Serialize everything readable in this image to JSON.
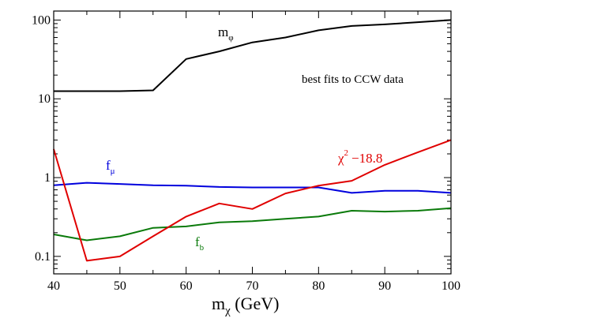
{
  "chart_data": {
    "type": "line",
    "x_scale": "linear",
    "y_scale": "log",
    "xlim": [
      40,
      100
    ],
    "ylim": [
      0.06,
      130
    ],
    "xticks": [
      40,
      50,
      60,
      70,
      80,
      90,
      100
    ],
    "xtick_labels": [
      "40",
      "50",
      "60",
      "70",
      "80",
      "90",
      "100"
    ],
    "yticks": [
      0.1,
      1,
      10,
      100
    ],
    "ytick_labels": [
      "0.1",
      "1",
      "10",
      "100"
    ],
    "xlabel": {
      "main": "m",
      "sub": "χ",
      "rest": " (GeV)"
    },
    "ylabel": "",
    "annotation": "best fits to CCW data",
    "series": [
      {
        "key": "m_phi",
        "name": "m",
        "sub": "φ",
        "color": "#000000",
        "x": [
          40,
          45,
          50,
          55,
          60,
          65,
          70,
          75,
          80,
          85,
          90,
          95,
          100
        ],
        "y": [
          12.5,
          12.5,
          12.5,
          12.8,
          32,
          40,
          52,
          60,
          74,
          84,
          88,
          94,
          100
        ]
      },
      {
        "key": "f_mu",
        "name": "f",
        "sub": "μ",
        "color": "#0000dd",
        "x": [
          40,
          45,
          50,
          55,
          60,
          65,
          70,
          75,
          80,
          85,
          90,
          95,
          100
        ],
        "y": [
          0.8,
          0.86,
          0.83,
          0.8,
          0.79,
          0.76,
          0.75,
          0.75,
          0.75,
          0.64,
          0.68,
          0.68,
          0.64
        ]
      },
      {
        "key": "f_b",
        "name": "f",
        "sub": "b",
        "color": "#0a7a0a",
        "x": [
          40,
          45,
          50,
          55,
          60,
          65,
          70,
          75,
          80,
          85,
          90,
          95,
          100
        ],
        "y": [
          0.19,
          0.16,
          0.18,
          0.23,
          0.24,
          0.27,
          0.28,
          0.3,
          0.32,
          0.38,
          0.37,
          0.38,
          0.41
        ]
      },
      {
        "key": "chi2",
        "name": "χ",
        "sup": "2",
        "rest": "−18.8",
        "color": "#e00000",
        "x": [
          40,
          45,
          50,
          55,
          60,
          65,
          70,
          75,
          80,
          85,
          90,
          95,
          100
        ],
        "y": [
          2.3,
          0.088,
          0.1,
          0.18,
          0.32,
          0.47,
          0.4,
          0.63,
          0.79,
          0.91,
          1.45,
          2.1,
          3.0
        ]
      }
    ]
  }
}
